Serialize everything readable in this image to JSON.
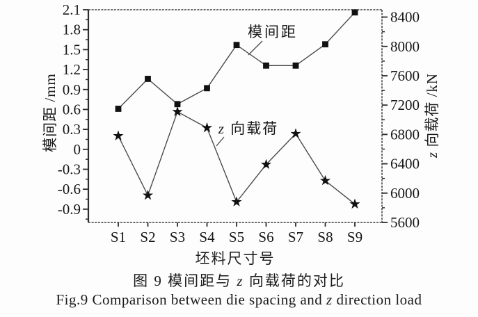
{
  "figure": {
    "axes": {
      "left_title": "模间距 /mm",
      "right_title_italic": "z",
      "right_title_suffix": " 向载荷 /kN",
      "x_title": "坯料尺寸号"
    },
    "annotations": {
      "die_spacing": "模间距",
      "z_load_italic": "z",
      "z_load_suffix": " 向载荷"
    },
    "captions": {
      "cn_prefix": "图 9  模间距与 ",
      "cn_italic": "z",
      "cn_suffix": " 向载荷的对比",
      "en_prefix": "Fig.9  Comparison between die spacing and ",
      "en_italic": "z",
      "en_suffix": " direction load"
    }
  },
  "chart_data": {
    "type": "line",
    "categories": [
      "S1",
      "S2",
      "S3",
      "S4",
      "S5",
      "S6",
      "S7",
      "S8",
      "S9"
    ],
    "series": [
      {
        "name": "模间距",
        "axis": "left",
        "marker": "square",
        "values": [
          0.61,
          1.06,
          0.68,
          0.92,
          1.57,
          1.26,
          1.26,
          1.58,
          2.06
        ]
      },
      {
        "name": "z 向载荷",
        "axis": "right",
        "marker": "star",
        "values": [
          6780,
          5970,
          7110,
          6890,
          5880,
          6390,
          6810,
          6170,
          5850
        ]
      }
    ],
    "left_axis": {
      "label": "模间距 /mm",
      "range": [
        -1.1,
        2.1
      ],
      "ticks": [
        {
          "v": 2.1,
          "label": "2.1"
        },
        {
          "v": 1.8,
          "label": "1.8"
        },
        {
          "v": 1.5,
          "label": "1.5"
        },
        {
          "v": 1.2,
          "label": "1.2"
        },
        {
          "v": 0.9,
          "label": "0.9"
        },
        {
          "v": 0.6,
          "label": "0.6"
        },
        {
          "v": 0.3,
          "label": "0.3"
        },
        {
          "v": 0.0,
          "label": "0"
        },
        {
          "v": -0.3,
          "label": "-0.3"
        },
        {
          "v": -0.6,
          "label": "-0.6"
        },
        {
          "v": -0.9,
          "label": "-0.9"
        }
      ],
      "minor_step": 0.15
    },
    "right_axis": {
      "label": "z 向载荷 /kN",
      "range": [
        5600,
        8500
      ],
      "ticks": [
        {
          "v": 8400,
          "label": "8400"
        },
        {
          "v": 8000,
          "label": "8000"
        },
        {
          "v": 7600,
          "label": "7600"
        },
        {
          "v": 7200,
          "label": "7200"
        },
        {
          "v": 6800,
          "label": "6800"
        },
        {
          "v": 6400,
          "label": "6400"
        },
        {
          "v": 6000,
          "label": "6000"
        },
        {
          "v": 5600,
          "label": "5600"
        }
      ],
      "minor_step": 200
    },
    "xlabel": "坯料尺寸号",
    "line_color": "#4a4a4a",
    "marker_color": "#111111"
  }
}
